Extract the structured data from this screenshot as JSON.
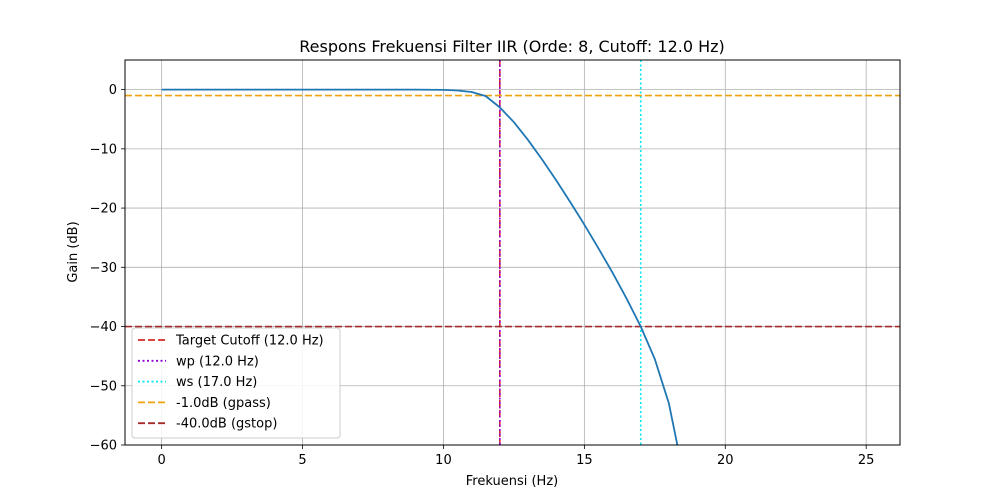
{
  "chart_data": {
    "type": "line",
    "title": "Respons Frekuensi Filter IIR (Orde: 8, Cutoff: 12.0 Hz)",
    "xlabel": "Frekuensi (Hz)",
    "ylabel": "Gain (dB)",
    "xlim": [
      -1.3,
      26.2
    ],
    "ylim": [
      -60,
      5
    ],
    "xticks": [
      0,
      5,
      10,
      15,
      20,
      25
    ],
    "xtick_labels": [
      "0",
      "5",
      "10",
      "15",
      "20",
      "25"
    ],
    "yticks": [
      0,
      -10,
      -20,
      -30,
      -40,
      -50,
      -60
    ],
    "ytick_labels": [
      "0",
      "−10",
      "−20",
      "−30",
      "−40",
      "−50",
      "−60"
    ],
    "grid": true,
    "legend_position": "lower-left",
    "series": [
      {
        "color": "#1f77b4",
        "x": [
          0,
          2,
          4,
          6,
          8,
          9,
          10,
          10.5,
          11,
          11.5,
          12,
          12.5,
          13,
          13.5,
          14,
          14.5,
          15,
          15.5,
          16,
          16.5,
          17,
          17.5,
          18,
          18.3
        ],
        "y": [
          0,
          0,
          0,
          0,
          0,
          0,
          -0.05,
          -0.15,
          -0.4,
          -1.1,
          -3.0,
          -5.5,
          -8.5,
          -11.8,
          -15.3,
          -19.0,
          -22.8,
          -26.8,
          -30.9,
          -35.3,
          -40.0,
          -45.5,
          -53.0,
          -60.0
        ]
      }
    ],
    "reference_lines": [
      {
        "orientation": "vertical",
        "value": 12.0,
        "style": "dashed",
        "color": "#d62728",
        "label": "Target Cutoff (12.0 Hz)"
      },
      {
        "orientation": "vertical",
        "value": 12.0,
        "style": "dotted",
        "color": "#9400d3",
        "label": "wp (12.0 Hz)"
      },
      {
        "orientation": "vertical",
        "value": 17.0,
        "style": "dotted",
        "color": "#00e5ee",
        "label": "ws (17.0 Hz)"
      },
      {
        "orientation": "horizontal",
        "value": -1.0,
        "style": "dashed",
        "color": "#f0a30a",
        "label": "-1.0dB (gpass)"
      },
      {
        "orientation": "horizontal",
        "value": -40.0,
        "style": "dashed",
        "color": "#a52a2a",
        "label": "-40.0dB (gstop)"
      }
    ]
  }
}
